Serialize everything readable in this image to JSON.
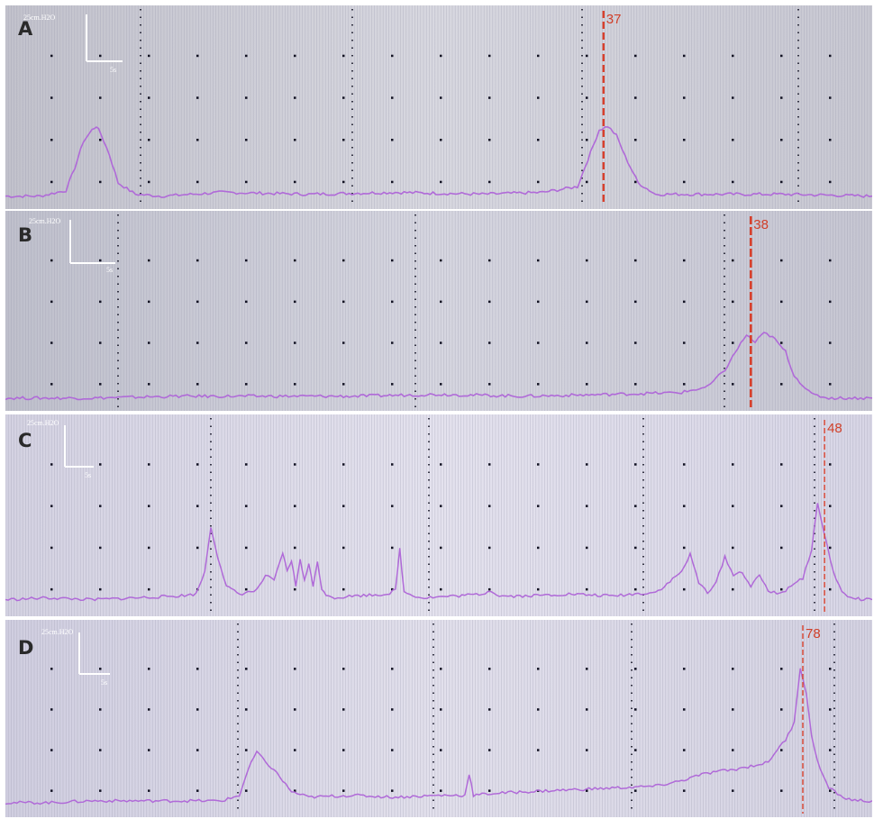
{
  "colors": {
    "background": "#ffffff",
    "trace": "#b06ad8",
    "marker": "#d8402c",
    "scale_bar": "#ffffff"
  },
  "chart_data": [
    {
      "type": "line",
      "panel": "A",
      "scale_bar": {
        "y_label": "25cm.H2O",
        "x_label": "5s"
      },
      "xlim": [
        0,
        100
      ],
      "ylim": [
        0,
        100
      ],
      "grid": true,
      "marker": {
        "label": "37",
        "x": 69.0
      },
      "series": [
        {
          "x": [
            0,
            4,
            7,
            8,
            9,
            10,
            10.5,
            11,
            12,
            13,
            15,
            18,
            25,
            35,
            45,
            55,
            62,
            66,
            67.5,
            68.5,
            69.5,
            70.5,
            71.5,
            73,
            75,
            80,
            90,
            100
          ],
          "y": [
            3,
            3,
            6,
            18,
            32,
            38,
            40,
            36,
            25,
            10,
            4,
            3,
            5,
            4,
            5,
            4,
            5,
            8,
            26,
            38,
            40,
            35,
            24,
            10,
            4,
            4,
            4,
            3
          ]
        }
      ]
    },
    {
      "type": "line",
      "panel": "B",
      "scale_bar": {
        "y_label": "25cm.H2O",
        "x_label": "5s"
      },
      "xlim": [
        0,
        100
      ],
      "ylim": [
        0,
        100
      ],
      "grid": true,
      "marker": {
        "label": "38",
        "x": 86.0
      },
      "series": [
        {
          "x": [
            0,
            10,
            20,
            30,
            40,
            50,
            60,
            70,
            78,
            81,
            83,
            84.5,
            85.5,
            86.5,
            87.5,
            88.5,
            90,
            91,
            93,
            95,
            97,
            100
          ],
          "y": [
            3,
            3,
            4,
            4,
            4,
            5,
            4,
            5,
            6,
            9,
            18,
            30,
            37,
            33,
            38,
            36,
            28,
            15,
            5,
            3,
            3,
            3
          ]
        }
      ]
    },
    {
      "type": "line",
      "panel": "C",
      "scale_bar": {
        "y_label": "25cm.H2O",
        "x_label": "5s"
      },
      "xlim": [
        0,
        100
      ],
      "ylim": [
        0,
        100
      ],
      "grid": true,
      "marker": {
        "label": "48",
        "x": 94.5
      },
      "series": [
        {
          "x": [
            0,
            5,
            10,
            15,
            20,
            22,
            23,
            23.7,
            24.5,
            25.5,
            27,
            29,
            30,
            31,
            32,
            32.5,
            33,
            33.5,
            34,
            34.5,
            35,
            35.5,
            36,
            36.5,
            37,
            38,
            40,
            44,
            45,
            45.5,
            46,
            48,
            52,
            55,
            56,
            57,
            60,
            65,
            70,
            75,
            76,
            77,
            78,
            79,
            80,
            81,
            82,
            83,
            84,
            85,
            86,
            87,
            88,
            89,
            90,
            91,
            92,
            93,
            93.7,
            94.5,
            95.5,
            96.5,
            97.5,
            99,
            100
          ],
          "y": [
            5,
            6,
            5,
            6,
            7,
            8,
            20,
            44,
            28,
            12,
            8,
            10,
            18,
            15,
            30,
            20,
            26,
            12,
            27,
            15,
            24,
            12,
            26,
            10,
            8,
            6,
            7,
            8,
            10,
            32,
            9,
            6,
            7,
            8,
            10,
            7,
            7,
            8,
            7,
            9,
            12,
            16,
            20,
            29,
            14,
            9,
            14,
            28,
            18,
            20,
            12,
            18,
            10,
            8,
            10,
            14,
            16,
            32,
            56,
            40,
            20,
            9,
            6,
            5,
            5
          ]
        }
      ]
    },
    {
      "type": "line",
      "panel": "D",
      "scale_bar": {
        "y_label": "25cm.H2O",
        "x_label": "5s"
      },
      "xlim": [
        0,
        100
      ],
      "ylim": [
        0,
        100
      ],
      "grid": true,
      "marker": {
        "label": "78",
        "x": 92.0
      },
      "series": [
        {
          "x": [
            0,
            5,
            10,
            15,
            20,
            25,
            27,
            28,
            29,
            30,
            31,
            32,
            33,
            35,
            40,
            45,
            50,
            53,
            53.5,
            54,
            56,
            60,
            65,
            70,
            75,
            78,
            80,
            82,
            84,
            86,
            88,
            89,
            90,
            91,
            91.7,
            92.4,
            93,
            94,
            95,
            97,
            99,
            100
          ],
          "y": [
            4,
            4,
            5,
            5,
            5,
            5,
            8,
            22,
            32,
            26,
            22,
            16,
            10,
            7,
            8,
            7,
            8,
            8,
            20,
            8,
            9,
            10,
            11,
            12,
            13,
            16,
            19,
            21,
            22,
            24,
            26,
            33,
            38,
            48,
            78,
            64,
            40,
            22,
            12,
            6,
            5,
            5
          ]
        }
      ]
    }
  ]
}
